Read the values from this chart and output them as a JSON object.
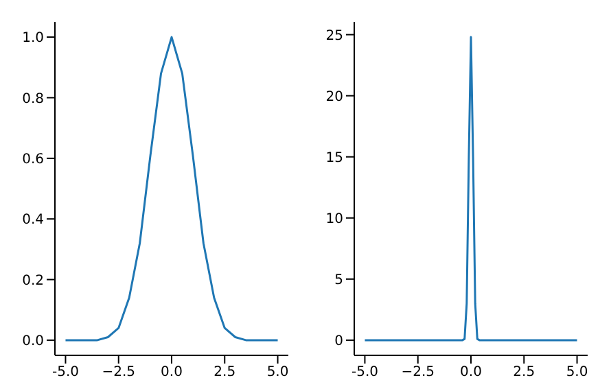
{
  "chart_data": [
    {
      "type": "line",
      "x": [
        -5,
        -4.5,
        -4,
        -3.5,
        -3,
        -2.5,
        -2,
        -1.5,
        -1,
        -0.5,
        0,
        0.5,
        1,
        1.5,
        2,
        2.5,
        3,
        3.5,
        4,
        4.5,
        5
      ],
      "series": [
        {
          "color": "#1f77b4",
          "values": [
            0,
            0,
            0,
            0,
            0.01,
            0.04,
            0.14,
            0.32,
            0.61,
            0.88,
            1,
            0.88,
            0.61,
            0.32,
            0.14,
            0.04,
            0.01,
            0,
            0,
            0,
            0
          ]
        }
      ],
      "xlim": [
        -5.5,
        5.5
      ],
      "xticks": [
        {
          "value": -5,
          "label": "-5.0"
        },
        {
          "value": -2.5,
          "label": "−2.5"
        },
        {
          "value": 0,
          "label": "0.0"
        },
        {
          "value": 2.5,
          "label": "2.5"
        },
        {
          "value": 5,
          "label": "5.0"
        }
      ],
      "ylim": [
        -0.05,
        1.05
      ],
      "yticks": [
        {
          "value": 0,
          "label": "0.0"
        },
        {
          "value": 0.2,
          "label": "0.2"
        },
        {
          "value": 0.4,
          "label": "0.4"
        },
        {
          "value": 0.6,
          "label": "0.6"
        },
        {
          "value": 0.8,
          "label": "0.8"
        },
        {
          "value": 1,
          "label": "1.0"
        }
      ],
      "grid": false,
      "legend": false
    },
    {
      "type": "line",
      "x": [
        -5,
        -0.4,
        -0.3,
        -0.2,
        -0.1,
        0,
        0.1,
        0.2,
        0.3,
        0.4,
        5
      ],
      "series": [
        {
          "color": "#1f77b4",
          "values": [
            0,
            0,
            0.1,
            3,
            15,
            24.8,
            15,
            3,
            0.1,
            0,
            0
          ]
        }
      ],
      "xlim": [
        -5.5,
        5.5
      ],
      "xticks": [
        {
          "value": -5,
          "label": "-5.0"
        },
        {
          "value": -2.5,
          "label": "−2.5"
        },
        {
          "value": 0,
          "label": "0.0"
        },
        {
          "value": 2.5,
          "label": "2.5"
        },
        {
          "value": 5,
          "label": "5.0"
        }
      ],
      "ylim": [
        -1.24,
        26.04
      ],
      "yticks": [
        0,
        5,
        10,
        15,
        20,
        25
      ],
      "grid": false,
      "legend": false
    }
  ]
}
